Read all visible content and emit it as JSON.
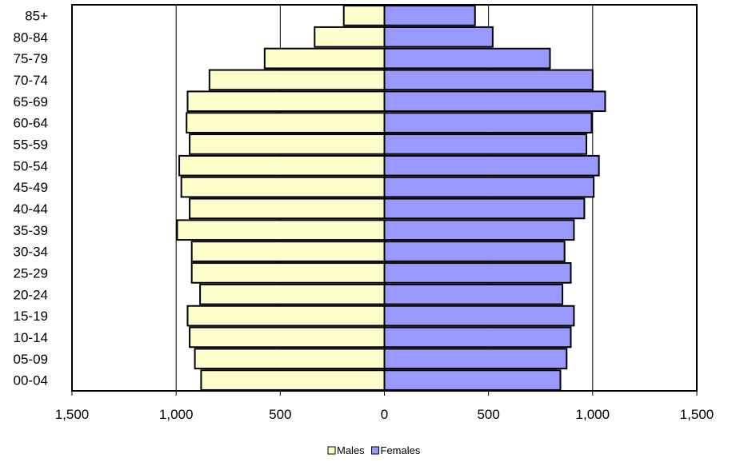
{
  "chart_data": {
    "type": "bar",
    "orientation": "horizontal",
    "layout": "population-pyramid",
    "title": "",
    "xlabel": "",
    "ylabel": "",
    "categories": [
      "00-04",
      "05-09",
      "10-14",
      "15-19",
      "20-24",
      "25-29",
      "30-34",
      "35-39",
      "40-44",
      "45-49",
      "50-54",
      "55-59",
      "60-64",
      "65-69",
      "70-74",
      "75-79",
      "80-84",
      "85+"
    ],
    "series": [
      {
        "name": "Males",
        "color": "#FFFFCC",
        "values": [
          880,
          910,
          935,
          945,
          885,
          925,
          925,
          995,
          935,
          975,
          985,
          935,
          950,
          945,
          840,
          575,
          335,
          195
        ]
      },
      {
        "name": "Females",
        "color": "#9999FF",
        "values": [
          845,
          875,
          895,
          910,
          855,
          895,
          865,
          910,
          960,
          1005,
          1030,
          970,
          995,
          1060,
          1000,
          795,
          520,
          435
        ]
      }
    ],
    "xlim": [
      -1500,
      1500
    ],
    "xticks": [
      -1500,
      -1000,
      -500,
      0,
      500,
      1000,
      1500
    ],
    "xtick_labels": [
      "1,500",
      "1,000",
      "500",
      "0",
      "500",
      "1,000",
      "1,500"
    ],
    "grid": "vertical",
    "legend_position": "bottom"
  }
}
